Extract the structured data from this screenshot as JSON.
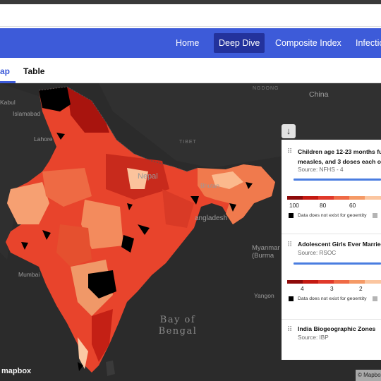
{
  "navbar": {
    "items": [
      "Home",
      "Deep Dive",
      "Composite Index",
      "Infectio"
    ],
    "active": "Deep Dive",
    "color": "#3d5bd9"
  },
  "subnav": {
    "tabs": [
      "ap",
      "Table"
    ],
    "active": "ap"
  },
  "map": {
    "labels": {
      "kabul": "Kabul",
      "islamabad": "Islamabad",
      "lahore": "Lahore",
      "nepal": "Nepal",
      "bhutan": "Bhutan",
      "bangladesh": "angladesh",
      "tibet": "TIBET",
      "ngdong": "NGDONG",
      "china": "China",
      "myanmar": "Myanmar\n(Burma",
      "yangon": "Yangon",
      "mumbai": "Mumbai",
      "bay": "Bay of\nBengal"
    },
    "mapbox_logo": "mapbox",
    "attribution": "© Mapbox"
  },
  "collapse_icon": "arrow-down-icon",
  "panel": {
    "cards": [
      {
        "title_line1": "Children age 12-23 months fu",
        "title_line2": "measles, and 3 doses each o",
        "source": "Source: NFHS - 4",
        "legend": [
          "100",
          "80",
          "60"
        ],
        "nodata": "Data does not exist for geoentity"
      },
      {
        "title_line1": "Adolescent Girls Ever Married",
        "source": "Source: RSOC",
        "legend": [
          "4",
          "3",
          "2"
        ],
        "nodata": "Data does not exist for geoentity"
      },
      {
        "title_line1": "India Biogeographic Zones",
        "source": "Source: IBP"
      }
    ],
    "legend_colors": [
      "#8e0a0a",
      "#c41a12",
      "#e0392a",
      "#ef6a45",
      "#f59a66",
      "#fbc6a0"
    ]
  }
}
